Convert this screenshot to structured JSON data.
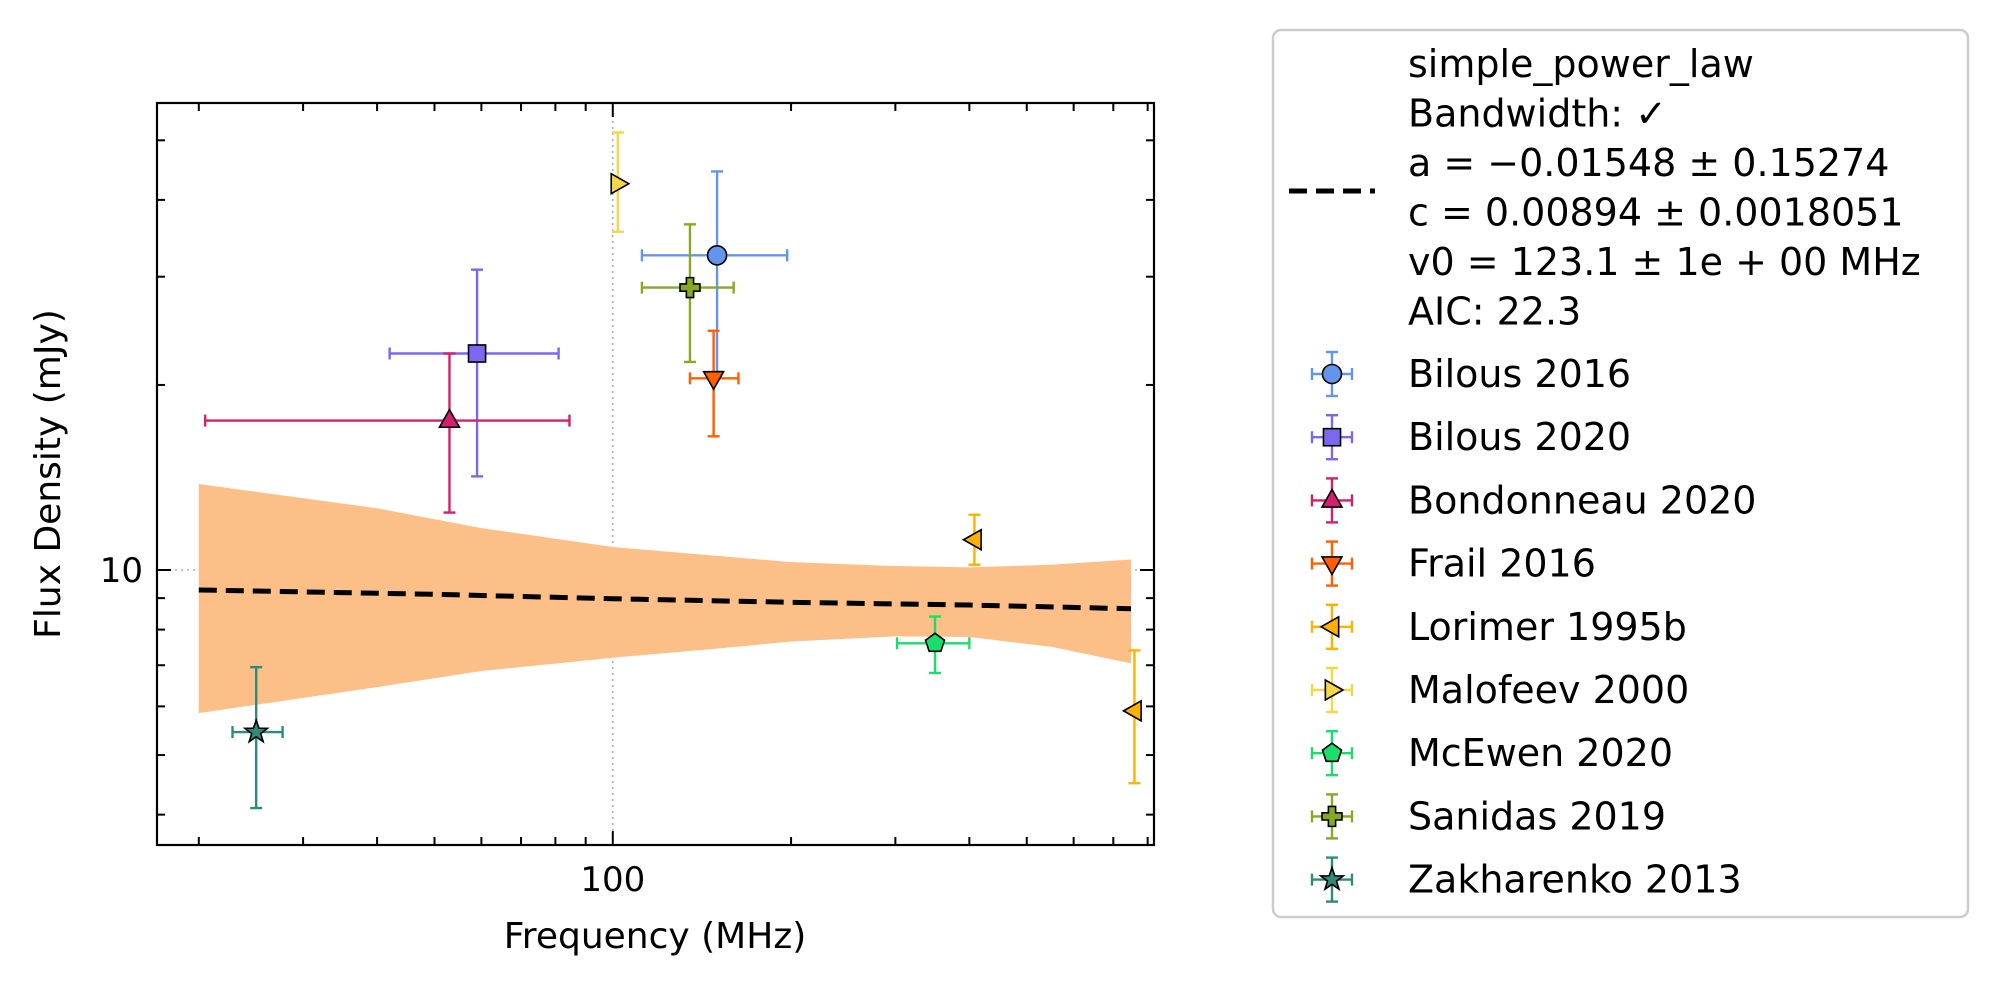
{
  "chart_data": {
    "type": "scatter",
    "xlabel": "Frequency (MHz)",
    "ylabel": "Flux Density (mJy)",
    "x_scale": "log",
    "y_scale": "log",
    "xlim": [
      17,
      820
    ],
    "ylim": [
      3.57,
      57.5
    ],
    "x_tick_labels": [
      {
        "value": 100,
        "label": "100"
      }
    ],
    "y_tick_labels": [
      {
        "value": 10,
        "label": "10"
      }
    ],
    "grid": "dotted lines at 100 MHz and 10 mJy",
    "legend_position": "outside-right",
    "model": {
      "lines": [
        "simple_power_law",
        "Bandwidth: ✓",
        "a = −0.01548 ± 0.15274",
        "c = 0.00894 ± 0.0018051",
        "v0 = 123.1 ± 1e + 00 MHz",
        "AIC: 22.3"
      ],
      "line_color": "#000000",
      "band_color": "#fdbf88",
      "curve": [
        {
          "x": 20,
          "y": 9.28
        },
        {
          "x": 50,
          "y": 9.13
        },
        {
          "x": 100,
          "y": 8.98
        },
        {
          "x": 200,
          "y": 8.86
        },
        {
          "x": 400,
          "y": 8.77
        },
        {
          "x": 750,
          "y": 8.65
        }
      ],
      "band_upper": [
        {
          "x": 20,
          "y": 13.8
        },
        {
          "x": 40,
          "y": 12.6
        },
        {
          "x": 60,
          "y": 11.7
        },
        {
          "x": 100,
          "y": 10.9
        },
        {
          "x": 200,
          "y": 10.3
        },
        {
          "x": 300,
          "y": 10.15
        },
        {
          "x": 400,
          "y": 10.1
        },
        {
          "x": 550,
          "y": 10.2
        },
        {
          "x": 750,
          "y": 10.4
        }
      ],
      "band_lower": [
        {
          "x": 20,
          "y": 5.85
        },
        {
          "x": 40,
          "y": 6.45
        },
        {
          "x": 60,
          "y": 6.85
        },
        {
          "x": 100,
          "y": 7.2
        },
        {
          "x": 150,
          "y": 7.45
        },
        {
          "x": 200,
          "y": 7.65
        },
        {
          "x": 300,
          "y": 7.8
        },
        {
          "x": 400,
          "y": 7.78
        },
        {
          "x": 550,
          "y": 7.5
        },
        {
          "x": 750,
          "y": 7.05
        }
      ]
    },
    "series": [
      {
        "name": "Bilous 2016",
        "color": "#6495ed",
        "marker": "circle",
        "points": [
          {
            "x": 150,
            "y": 32.5,
            "xerr": [
              112,
              197
            ],
            "yerr": [
              21.0,
              44.5
            ]
          }
        ]
      },
      {
        "name": "Bilous 2020",
        "color": "#7b68ee",
        "marker": "square",
        "points": [
          {
            "x": 59,
            "y": 22.5,
            "xerr": [
              42,
              81
            ],
            "yerr": [
              14.2,
              30.8
            ]
          }
        ]
      },
      {
        "name": "Bondonneau 2020",
        "color": "#d3206e",
        "marker": "triangle-up",
        "points": [
          {
            "x": 53,
            "y": 17.5,
            "xerr": [
              20.5,
              84.5
            ],
            "yerr": [
              12.4,
              22.5
            ]
          }
        ]
      },
      {
        "name": "Frail 2016",
        "color": "#ff5f00",
        "marker": "triangle-down",
        "points": [
          {
            "x": 148,
            "y": 20.5,
            "xerr": [
              135,
              163
            ],
            "yerr": [
              16.5,
              24.5
            ]
          }
        ]
      },
      {
        "name": "Lorimer 1995b",
        "color": "#ffb000",
        "marker": "triangle-left",
        "points": [
          {
            "x": 408,
            "y": 11.2,
            "xerr": [
              408,
              408
            ],
            "yerr": [
              10.2,
              12.3
            ]
          },
          {
            "x": 760,
            "y": 5.9,
            "xerr": [
              760,
              760
            ],
            "yerr": [
              4.5,
              7.4
            ]
          }
        ]
      },
      {
        "name": "Malofeev 2000",
        "color": "#f6d743",
        "marker": "triangle-right",
        "points": [
          {
            "x": 102,
            "y": 42.5,
            "xerr": [
              102,
              102
            ],
            "yerr": [
              35.5,
              51.5
            ]
          }
        ]
      },
      {
        "name": "McEwen 2020",
        "color": "#1ade6c",
        "marker": "pentagon",
        "points": [
          {
            "x": 350,
            "y": 7.6,
            "xerr": [
              302,
              400
            ],
            "yerr": [
              6.8,
              8.4
            ]
          }
        ]
      },
      {
        "name": "Sanidas 2019",
        "color": "#87a922",
        "marker": "plus",
        "points": [
          {
            "x": 135,
            "y": 28.8,
            "xerr": [
              112,
              160
            ],
            "yerr": [
              21.8,
              36.5
            ]
          }
        ]
      },
      {
        "name": "Zakharenko 2013",
        "color": "#2e8b7a",
        "marker": "star",
        "points": [
          {
            "x": 25,
            "y": 5.45,
            "xerr": [
              22.8,
              27.7
            ],
            "yerr": [
              4.1,
              6.95
            ]
          }
        ]
      }
    ]
  }
}
